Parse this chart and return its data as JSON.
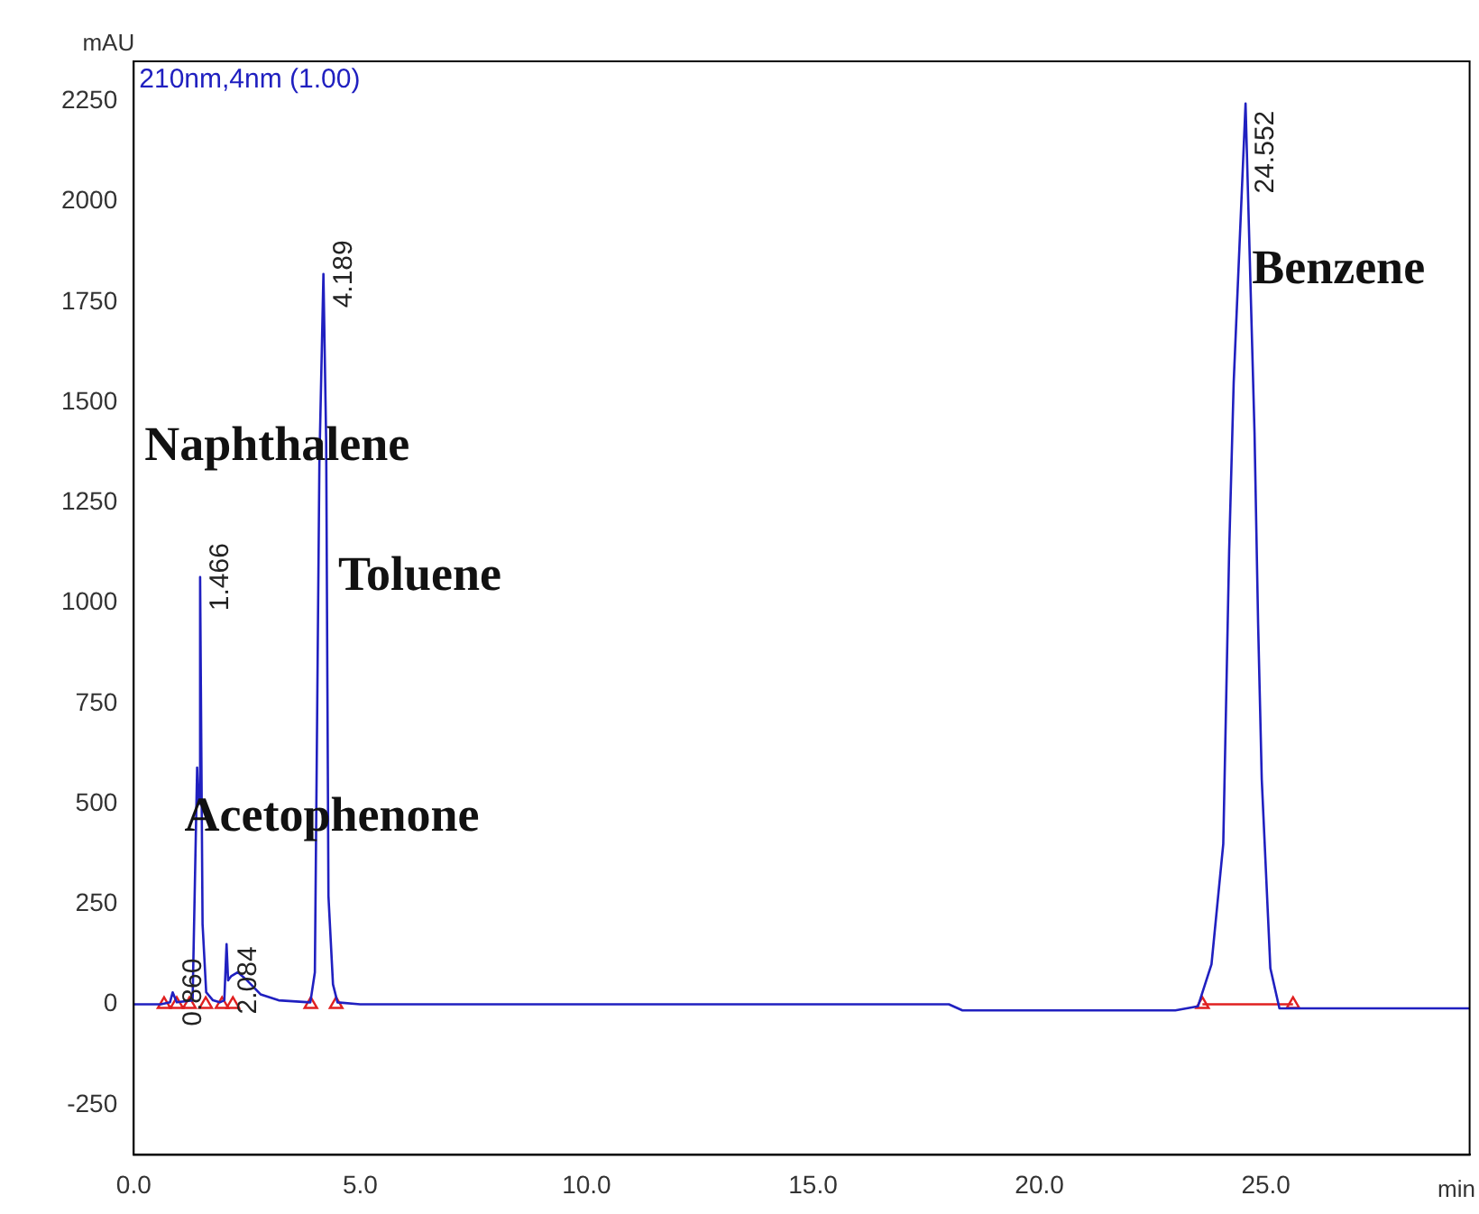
{
  "chart_data": {
    "type": "line",
    "ylabel": "mAU",
    "xlabel": "min",
    "xlim": [
      0,
      29.5
    ],
    "ylim": [
      -375,
      2350
    ],
    "xticks": [
      {
        "value": 0,
        "label": "0.0"
      },
      {
        "value": 5,
        "label": "5.0"
      },
      {
        "value": 10,
        "label": "10.0"
      },
      {
        "value": 15,
        "label": "15.0"
      },
      {
        "value": 20,
        "label": "20.0"
      },
      {
        "value": 25,
        "label": "25.0"
      }
    ],
    "yticks": [
      -250,
      0,
      250,
      500,
      750,
      1000,
      1250,
      1500,
      1750,
      2000,
      2250
    ],
    "grid": false,
    "legend": false,
    "marker": "none",
    "line_style": "solid",
    "annotations": [
      "Naphthalene",
      "Toluene",
      "Acetophenone",
      "Benzene",
      {
        "text": "0.860",
        "x": 0.86,
        "y": 30
      },
      {
        "text": "1.466",
        "x": 1.466,
        "y": 1065
      },
      {
        "text": "2.084",
        "x": 2.084,
        "y": 60
      },
      {
        "text": "4.189",
        "x": 4.189,
        "y": 1820
      },
      {
        "text": "24.552",
        "x": 24.552,
        "y": 2245
      }
    ],
    "series": [
      {
        "name": "210nm,4nm (1.00)",
        "color": "#2020c0",
        "x": [
          0,
          0.6,
          0.8,
          0.86,
          0.95,
          1.3,
          1.4,
          1.43,
          1.466,
          1.52,
          1.6,
          1.75,
          1.9,
          2.0,
          2.05,
          2.084,
          2.15,
          2.3,
          2.5,
          2.8,
          3.2,
          3.9,
          4.0,
          4.1,
          4.189,
          4.25,
          4.3,
          4.4,
          4.5,
          5,
          18,
          18.3,
          23,
          23.5,
          23.8,
          24.06,
          24.19,
          24.29,
          24.552,
          24.75,
          24.83,
          24.91,
          25.1,
          25.3,
          29.5
        ],
        "values": [
          0,
          0,
          5,
          30,
          5,
          10,
          590,
          500,
          1065,
          200,
          30,
          10,
          5,
          10,
          150,
          60,
          70,
          80,
          60,
          25,
          10,
          5,
          80,
          1350,
          1820,
          1400,
          270,
          50,
          5,
          0,
          0,
          -15,
          -15,
          -5,
          100,
          400,
          1130,
          1550,
          2245,
          1425,
          945,
          560,
          90,
          -10,
          -10
        ]
      },
      {
        "type": "scatter",
        "color": "#e02020",
        "marker": "triangle",
        "x": [
          0.67,
          0.95,
          1.23,
          1.59,
          1.95,
          2.19,
          3.91,
          4.47,
          23.6,
          25.6
        ],
        "values": [
          0,
          0,
          0,
          0,
          0,
          0,
          0,
          0,
          0,
          0
        ]
      },
      {
        "color": "#e02020",
        "x": [
          23.6,
          25.6
        ],
        "values": [
          0,
          0
        ]
      }
    ]
  }
}
